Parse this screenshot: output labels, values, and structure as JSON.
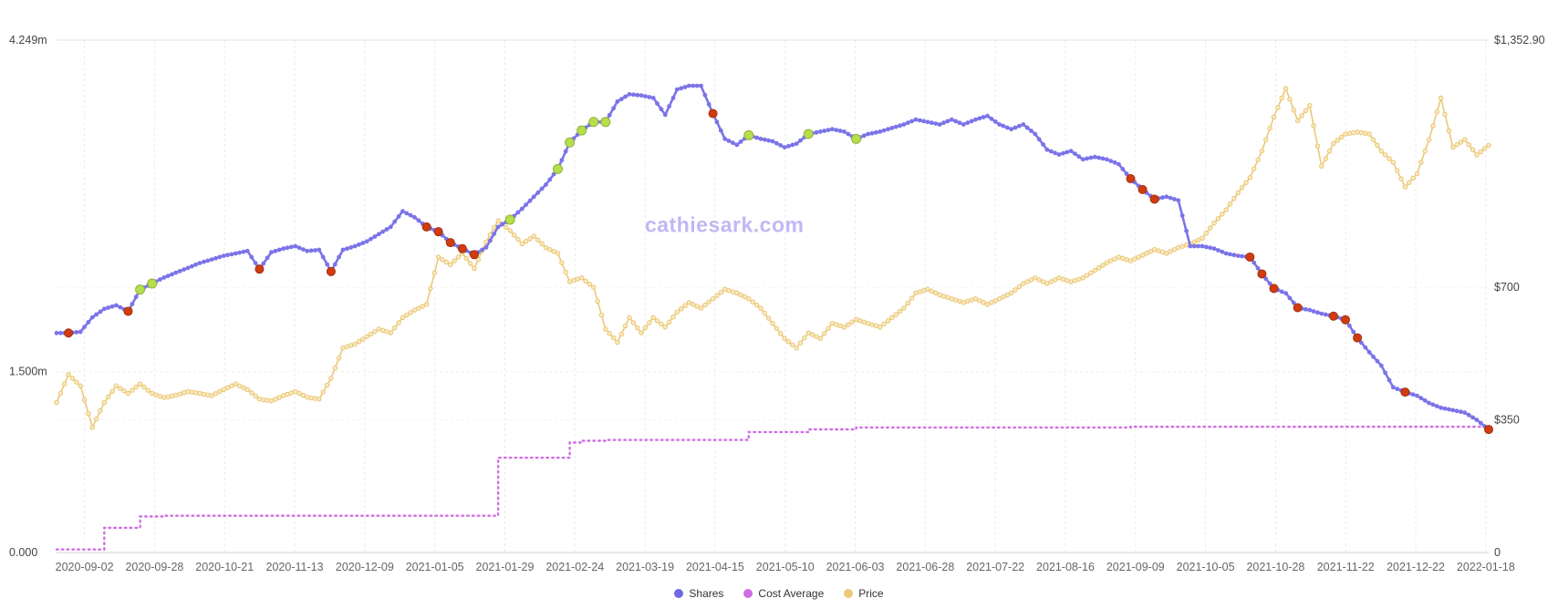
{
  "watermark": "cathiesark.com",
  "legend": [
    {
      "label": "Shares",
      "color": "#6f68e0"
    },
    {
      "label": "Cost Average",
      "color": "#cf6ee3"
    },
    {
      "label": "Price",
      "color": "#ecc878"
    }
  ],
  "chart_data": {
    "type": "line",
    "title": "",
    "x_tick_labels": [
      "2020-09-02",
      "2020-09-28",
      "2020-10-21",
      "2020-11-13",
      "2020-12-09",
      "2021-01-05",
      "2021-01-29",
      "2021-02-24",
      "2021-03-19",
      "2021-04-15",
      "2021-05-10",
      "2021-06-03",
      "2021-06-28",
      "2021-07-22",
      "2021-08-16",
      "2021-09-09",
      "2021-10-05",
      "2021-10-28",
      "2021-11-22",
      "2021-12-22",
      "2022-01-18"
    ],
    "left_axis": {
      "unit": "shares (millions)",
      "max": 4.249,
      "ticks": [
        {
          "label": "4.249m",
          "value": 4.249
        },
        {
          "label": "1.500m",
          "value": 1.5
        },
        {
          "label": "0.000",
          "value": 0
        }
      ]
    },
    "right_axis": {
      "unit": "USD",
      "max": 1352.9,
      "ticks": [
        {
          "label": "$1,352.90",
          "value": 1352.9
        },
        {
          "label": "$700",
          "value": 700
        },
        {
          "label": "$350",
          "value": 350
        },
        {
          "label": "0",
          "value": 0
        }
      ]
    },
    "grid": true,
    "legend_position": "bottom",
    "series": [
      {
        "name": "Shares",
        "axis": "left",
        "color": "#7b74e8",
        "style": "line-dots",
        "marker_fill": "#7b74e8",
        "values": [
          1.82,
          1.82,
          1.83,
          1.95,
          2.02,
          2.05,
          2.0,
          2.18,
          2.23,
          2.28,
          2.32,
          2.36,
          2.4,
          2.43,
          2.46,
          2.48,
          2.5,
          2.35,
          2.49,
          2.52,
          2.54,
          2.5,
          2.51,
          2.33,
          2.51,
          2.54,
          2.58,
          2.64,
          2.7,
          2.83,
          2.78,
          2.7,
          2.66,
          2.57,
          2.52,
          2.47,
          2.53,
          2.7,
          2.76,
          2.85,
          2.95,
          3.05,
          3.18,
          3.4,
          3.5,
          3.57,
          3.57,
          3.74,
          3.8,
          3.79,
          3.77,
          3.63,
          3.84,
          3.87,
          3.87,
          3.64,
          3.43,
          3.38,
          3.46,
          3.43,
          3.41,
          3.36,
          3.39,
          3.47,
          3.49,
          3.51,
          3.49,
          3.43,
          3.47,
          3.49,
          3.52,
          3.55,
          3.59,
          3.57,
          3.55,
          3.59,
          3.55,
          3.59,
          3.62,
          3.55,
          3.51,
          3.55,
          3.47,
          3.34,
          3.3,
          3.33,
          3.26,
          3.28,
          3.26,
          3.22,
          3.1,
          3.01,
          2.93,
          2.95,
          2.92,
          2.54,
          2.54,
          2.52,
          2.48,
          2.46,
          2.45,
          2.31,
          2.19,
          2.15,
          2.03,
          2.01,
          1.98,
          1.96,
          1.93,
          1.78,
          1.66,
          1.55,
          1.37,
          1.33,
          1.3,
          1.24,
          1.2,
          1.18,
          1.16,
          1.1,
          1.02
        ]
      },
      {
        "name": "Cost Average",
        "axis": "right",
        "color": "#cf6ee3",
        "style": "dotted-step",
        "values": [
          8,
          8,
          8,
          8,
          65,
          65,
          65,
          95,
          95,
          97,
          97,
          97,
          97,
          97,
          97,
          97,
          97,
          97,
          97,
          97,
          97,
          97,
          97,
          97,
          97,
          97,
          97,
          97,
          97,
          97,
          97,
          97,
          97,
          97,
          97,
          97,
          97,
          250,
          250,
          250,
          250,
          250,
          250,
          290,
          295,
          295,
          297,
          297,
          297,
          297,
          297,
          297,
          297,
          297,
          297,
          297,
          297,
          297,
          318,
          318,
          318,
          318,
          318,
          325,
          325,
          325,
          325,
          330,
          330,
          330,
          330,
          330,
          330,
          330,
          330,
          330,
          330,
          330,
          330,
          330,
          330,
          330,
          330,
          330,
          330,
          330,
          330,
          330,
          330,
          330,
          332,
          332,
          332,
          332,
          332,
          332,
          332,
          332,
          332,
          332,
          332,
          332,
          332,
          332,
          332,
          332,
          332,
          332,
          332,
          332,
          332,
          332,
          332,
          332,
          332,
          332,
          332,
          332,
          332,
          332,
          332
        ]
      },
      {
        "name": "Price",
        "axis": "right",
        "color": "#ecc878",
        "style": "line-dots",
        "marker_fill": "#f8ecc8",
        "values": [
          396,
          470,
          440,
          330,
          396,
          440,
          420,
          445,
          420,
          409,
          415,
          425,
          420,
          414,
          430,
          445,
          430,
          405,
          400,
          414,
          425,
          410,
          405,
          460,
          540,
          550,
          570,
          590,
          580,
          620,
          640,
          655,
          780,
          760,
          790,
          750,
          820,
          876,
          850,
          815,
          835,
          805,
          790,
          715,
          725,
          700,
          590,
          555,
          620,
          580,
          620,
          595,
          635,
          660,
          645,
          670,
          695,
          685,
          670,
          645,
          605,
          565,
          540,
          580,
          565,
          605,
          595,
          615,
          605,
          595,
          620,
          645,
          685,
          695,
          680,
          670,
          660,
          670,
          655,
          670,
          685,
          710,
          725,
          710,
          725,
          715,
          725,
          745,
          765,
          780,
          770,
          785,
          800,
          790,
          805,
          815,
          830,
          870,
          905,
          950,
          990,
          1060,
          1150,
          1225,
          1140,
          1180,
          1020,
          1080,
          1105,
          1110,
          1105,
          1060,
          1030,
          965,
          1000,
          1090,
          1200,
          1070,
          1090,
          1050,
          1075
        ]
      }
    ],
    "trade_markers": {
      "buy_color": "#b5df4b",
      "sell_color": "#cf3c10",
      "buy_indices": [
        7,
        8,
        38,
        42,
        43,
        44,
        45,
        46,
        58,
        63,
        67
      ],
      "sell_indices": [
        1,
        6,
        17,
        23,
        31,
        32,
        33,
        34,
        35,
        55,
        90,
        91,
        92,
        100,
        101,
        102,
        104,
        107,
        108,
        109,
        113,
        120
      ]
    }
  }
}
